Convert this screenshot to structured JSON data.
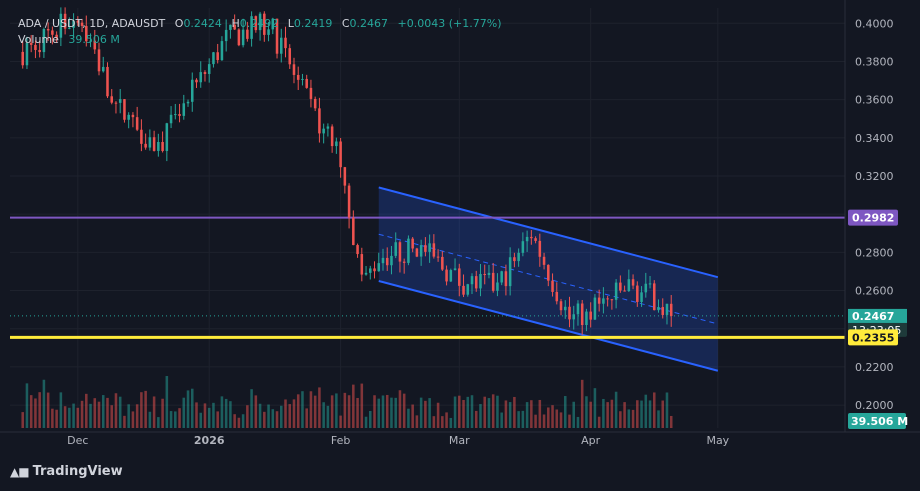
{
  "header": {
    "symbol": "ADA / USDT, 1D, ADAUSDT",
    "open_label": "O",
    "open": "0.2424",
    "high_label": "H",
    "high": "0.2492",
    "low_label": "L",
    "low": "0.2419",
    "close_label": "C",
    "close": "0.2467",
    "change": "+0.0043 (+1.77%)",
    "volume_label": "Volume",
    "volume": "39.506 M"
  },
  "badges": {
    "resistance": "0.2982",
    "last_price": "0.2467",
    "countdown": "13:23:05",
    "support": "0.2355",
    "volume": "39.506 M"
  },
  "footer": {
    "logo_icon": "tradingview-logo-icon",
    "brand": "TradingView"
  },
  "colors": {
    "background": "#131722",
    "up": "#26a69a",
    "down": "#ef5350",
    "channel": "#2962ff",
    "resistance": "#7e57c2",
    "support": "#ffeb3b"
  },
  "chart_data": {
    "type": "candlestick",
    "y_axis": {
      "ticks": [
        "0.4000",
        "0.3800",
        "0.3600",
        "0.3400",
        "0.3200",
        "0.3000",
        "0.2800",
        "0.2600",
        "0.2400",
        "0.2200",
        "0.2000"
      ],
      "range": [
        0.188,
        0.408
      ]
    },
    "x_axis": {
      "ticks": [
        "Dec",
        "2026",
        "Feb",
        "Mar",
        "Apr",
        "May"
      ],
      "range": [
        "2025-11-15",
        "2026-05-31"
      ]
    },
    "horizontal_lines": [
      {
        "label": "resistance",
        "value": 0.2982,
        "color": "#7e57c2"
      },
      {
        "label": "support",
        "value": 0.2355,
        "color": "#ffeb3b"
      }
    ],
    "descending_channel": {
      "upper": [
        [
          "2026-02-10",
          0.314
        ],
        [
          "2026-05-01",
          0.267
        ]
      ],
      "lower": [
        [
          "2026-02-10",
          0.265
        ],
        [
          "2026-05-01",
          0.218
        ]
      ],
      "mid": [
        [
          "2026-02-10",
          0.2895
        ],
        [
          "2026-05-01",
          0.2425
        ]
      ]
    },
    "last_close": 0.2467,
    "key_points": [
      [
        "2025-11-18",
        0.385
      ],
      [
        "2025-12-01",
        0.405
      ],
      [
        "2025-12-10",
        0.357
      ],
      [
        "2025-12-20",
        0.335
      ],
      [
        "2026-01-05",
        0.392
      ],
      [
        "2026-01-15",
        0.4
      ],
      [
        "2026-01-25",
        0.355
      ],
      [
        "2026-02-01",
        0.33
      ],
      [
        "2026-02-06",
        0.262
      ],
      [
        "2026-02-10",
        0.278
      ],
      [
        "2026-02-20",
        0.282
      ],
      [
        "2026-03-01",
        0.265
      ],
      [
        "2026-03-10",
        0.262
      ],
      [
        "2026-03-18",
        0.29
      ],
      [
        "2026-03-27",
        0.245
      ],
      [
        "2026-04-02",
        0.25
      ],
      [
        "2026-04-10",
        0.262
      ],
      [
        "2026-04-17",
        0.255
      ],
      [
        "2026-04-20",
        0.2467
      ]
    ]
  }
}
